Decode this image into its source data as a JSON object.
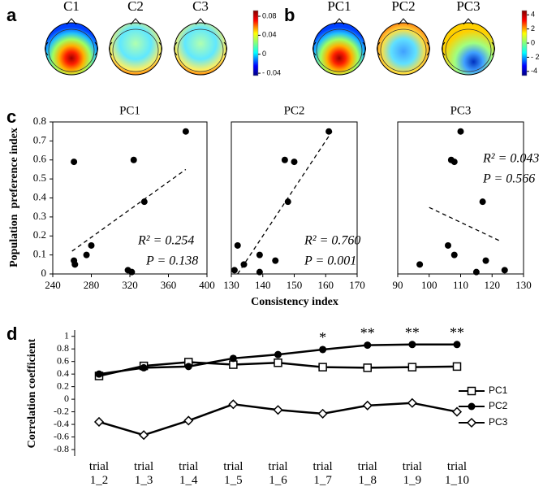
{
  "chart_data": [
    {
      "type": "topomap",
      "panel_label": "a",
      "titles": [
        "C1",
        "C2",
        "C3"
      ],
      "colorbar_lim": [
        -0.045,
        0.092
      ],
      "colorbar_ticks": [
        0.08,
        0.04,
        0,
        {
          "value": -0.04,
          "label": "- 0.04"
        }
      ]
    },
    {
      "type": "topomap",
      "panel_label": "b",
      "titles": [
        "PC1",
        "PC2",
        "PC3"
      ],
      "colorbar_lim": [
        -4.6,
        4.6
      ],
      "colorbar_ticks": [
        4,
        2,
        0,
        {
          "value": -2,
          "label": "- 2"
        },
        -4
      ]
    },
    {
      "type": "scatter",
      "panel_label": "c",
      "y_label": "Population  preference index",
      "x_label": "Consistency index",
      "ylim": [
        0,
        0.8
      ],
      "yticks": [
        0,
        0.1,
        0.2,
        0.3,
        0.4,
        0.5,
        0.6,
        0.7,
        0.8
      ],
      "subplots": [
        {
          "title": "PC1",
          "xlim": [
            240,
            400
          ],
          "xticks": [
            240,
            280,
            320,
            360,
            400
          ],
          "x": [
            262,
            263,
            262,
            275,
            280,
            318,
            322,
            324,
            335,
            378
          ],
          "y": [
            0.07,
            0.05,
            0.59,
            0.1,
            0.15,
            0.02,
            0.01,
            0.6,
            0.38,
            0.75
          ],
          "trendline": {
            "x": [
              260,
              378
            ],
            "y": [
              0.12,
              0.55
            ]
          },
          "annotations": [
            "R² = 0.254",
            "P = 0.138"
          ]
        },
        {
          "title": "PC2",
          "xlim": [
            130,
            170
          ],
          "xticks": [
            130,
            140,
            150,
            160,
            170
          ],
          "x": [
            131,
            132,
            134,
            139,
            139,
            144,
            147,
            148,
            150,
            161
          ],
          "y": [
            0.02,
            0.15,
            0.05,
            0.1,
            0.01,
            0.07,
            0.6,
            0.38,
            0.59,
            0.75
          ],
          "trendline": {
            "x": [
              132,
              162
            ],
            "y": [
              0,
              0.75
            ]
          },
          "annotations": [
            "R² = 0.760",
            "P = 0.001"
          ]
        },
        {
          "title": "PC3",
          "xlim": [
            90,
            130
          ],
          "xticks": [
            90,
            100,
            110,
            120,
            130
          ],
          "x": [
            97,
            106,
            107,
            108,
            108,
            110,
            115,
            117,
            118,
            124
          ],
          "y": [
            0.05,
            0.15,
            0.6,
            0.59,
            0.1,
            0.75,
            0.01,
            0.38,
            0.07,
            0.02
          ],
          "trendline": {
            "x": [
              100,
              123
            ],
            "y": [
              0.35,
              0.17
            ]
          },
          "annotations": [
            "R² = 0.043",
            "P = 0.566"
          ]
        }
      ]
    },
    {
      "type": "line",
      "panel_label": "d",
      "y_label": "Correlation coefficient",
      "categories": [
        "trial 1_2",
        "trial 1_3",
        "trial 1_4",
        "trial 1_5",
        "trial 1_6",
        "trial 1_7",
        "trial 1_8",
        "trial 1_9",
        "trial 1_10"
      ],
      "ylim": [
        -0.8,
        1.1
      ],
      "yticks": [
        -0.8,
        -0.6,
        -0.4,
        -0.2,
        0,
        0.2,
        0.4,
        0.6,
        0.8,
        1
      ],
      "legend": "right",
      "series": [
        {
          "name": "PC1",
          "marker": "square",
          "color": "#000000",
          "values": [
            0.37,
            0.53,
            0.59,
            0.55,
            0.58,
            0.51,
            0.5,
            0.51,
            0.52
          ]
        },
        {
          "name": "PC2",
          "marker": "circle",
          "color": "#000000",
          "values": [
            0.4,
            0.5,
            0.52,
            0.65,
            0.71,
            0.79,
            0.86,
            0.87,
            0.87
          ],
          "significance": [
            null,
            null,
            null,
            null,
            null,
            "*",
            "**",
            "**",
            "**"
          ]
        },
        {
          "name": "PC3",
          "marker": "diamond",
          "color": "#000000",
          "values": [
            -0.36,
            -0.57,
            -0.34,
            -0.08,
            -0.17,
            -0.23,
            -0.1,
            -0.06,
            -0.2
          ]
        }
      ]
    }
  ]
}
